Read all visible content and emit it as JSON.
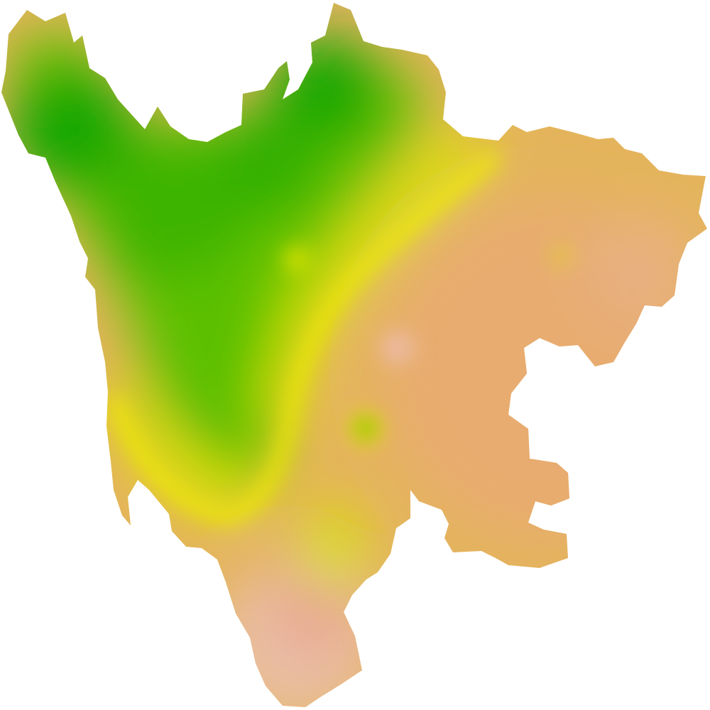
{
  "map": {
    "background_color": "#ffffff",
    "color_ramp": {
      "high_green": "#14a800",
      "mid_green": "#5cc000",
      "yellow_green": "#b8dc00",
      "yellow": "#e4e800",
      "orange": "#e4b45c",
      "salmon": "#e8ac7c",
      "pink": "#ecc4b4"
    },
    "legend_visible": false,
    "title_visible": false
  }
}
